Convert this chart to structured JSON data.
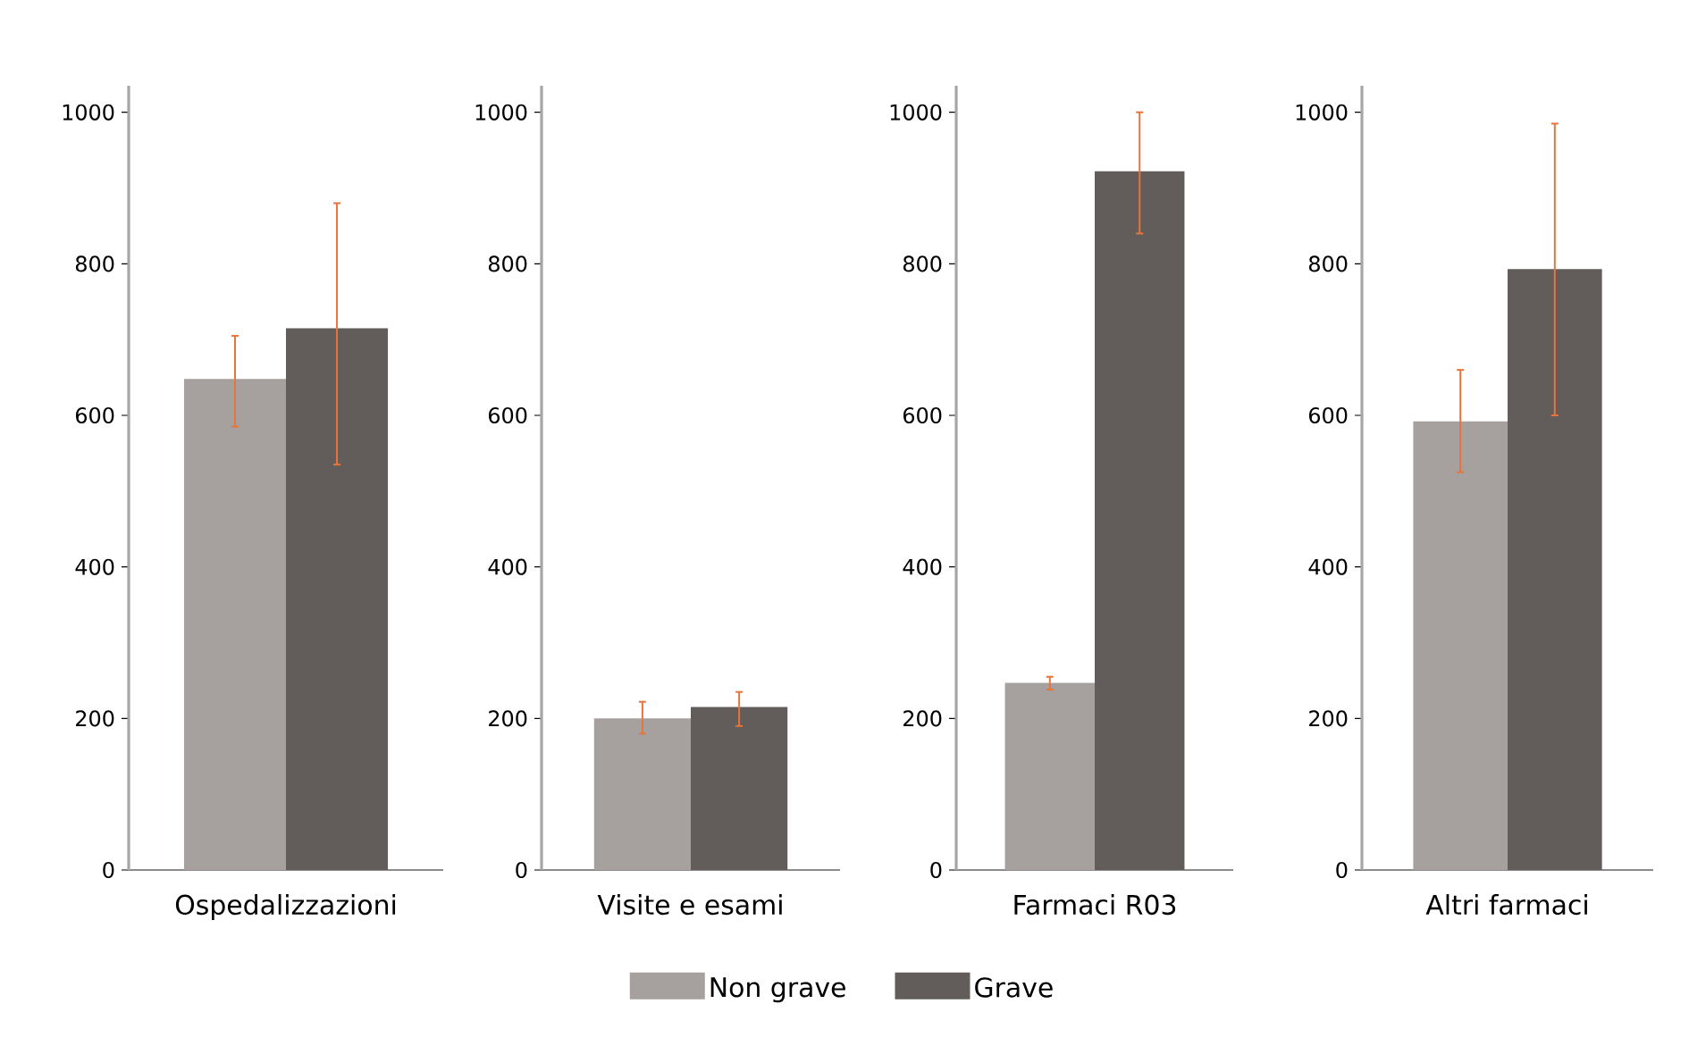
{
  "chart_data": [
    {
      "type": "bar",
      "categories": [
        "Ospedalizzazioni"
      ],
      "ylim": [
        0,
        1035
      ],
      "yticks": [
        0,
        200,
        400,
        600,
        800,
        1000
      ],
      "legend": "bottom",
      "series": [
        {
          "name": "Non grave",
          "color": "#a6a19e",
          "values": [
            648
          ],
          "errors": [
            [
              585,
              705
            ]
          ]
        },
        {
          "name": "Grave",
          "color": "#625d5a",
          "values": [
            715
          ],
          "errors": [
            [
              535,
              880
            ]
          ]
        }
      ]
    },
    {
      "type": "bar",
      "categories": [
        "Visite e esami"
      ],
      "ylim": [
        0,
        1035
      ],
      "yticks": [
        0,
        200,
        400,
        600,
        800,
        1000
      ],
      "series": [
        {
          "color": "#a6a19e",
          "values": [
            200
          ],
          "errors": [
            [
              180,
              222
            ]
          ]
        },
        {
          "color": "#625d5a",
          "values": [
            215
          ],
          "errors": [
            [
              190,
              235
            ]
          ]
        }
      ]
    },
    {
      "type": "bar",
      "categories": [
        "Farmaci R03"
      ],
      "ylim": [
        0,
        1035
      ],
      "yticks": [
        0,
        200,
        400,
        600,
        800,
        1000
      ],
      "series": [
        {
          "color": "#a6a19e",
          "values": [
            247
          ],
          "errors": [
            [
              238,
              255
            ]
          ]
        },
        {
          "color": "#625d5a",
          "values": [
            922
          ],
          "errors": [
            [
              840,
              1000
            ]
          ]
        }
      ]
    },
    {
      "type": "bar",
      "categories": [
        "Altri farmaci"
      ],
      "ylim": [
        0,
        1035
      ],
      "yticks": [
        0,
        200,
        400,
        600,
        800,
        1000
      ],
      "series": [
        {
          "color": "#a6a19e",
          "values": [
            592
          ],
          "errors": [
            [
              525,
              660
            ]
          ]
        },
        {
          "color": "#625d5a",
          "values": [
            793
          ],
          "errors": [
            [
              600,
              985
            ]
          ]
        }
      ]
    }
  ]
}
